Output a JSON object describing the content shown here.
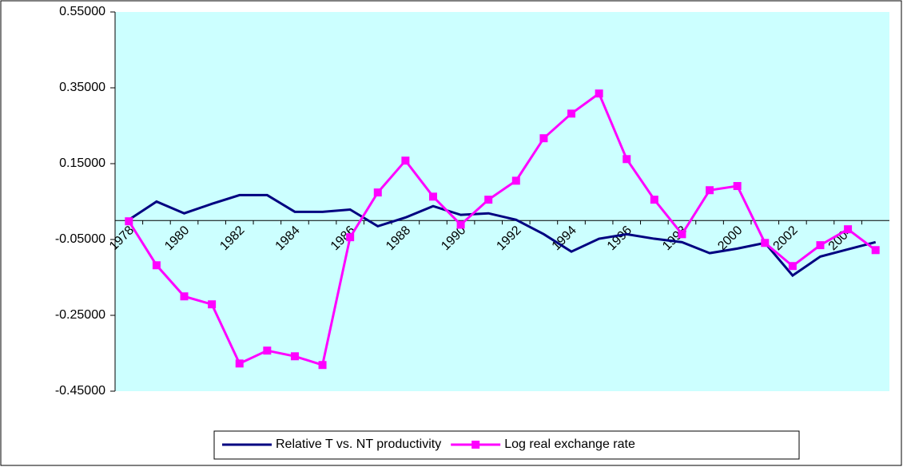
{
  "chart_data": {
    "type": "line",
    "categories": [
      "1978",
      null,
      "1980",
      null,
      "1982",
      null,
      "1984",
      null,
      "1986",
      null,
      "1988",
      null,
      "1990",
      null,
      "1992",
      null,
      "1994",
      null,
      "1996",
      null,
      "1998",
      null,
      "2000",
      null,
      "2002",
      null,
      "2004",
      null
    ],
    "series": [
      {
        "name": "Relative T vs. NT productivity",
        "color": "#000080",
        "marker": "none",
        "values": [
          0.002,
          0.05,
          0.019,
          0.044,
          0.067,
          0.067,
          0.023,
          0.023,
          0.029,
          -0.015,
          0.008,
          0.038,
          0.015,
          0.019,
          0.002,
          -0.036,
          -0.082,
          -0.048,
          -0.036,
          -0.048,
          -0.057,
          -0.086,
          -0.074,
          -0.059,
          -0.145,
          -0.095,
          -0.076,
          -0.057
        ]
      },
      {
        "name": "Log real exchange rate",
        "color": "#ff00ff",
        "marker": "square",
        "values": [
          -0.002,
          -0.118,
          -0.2,
          -0.221,
          -0.377,
          -0.343,
          -0.358,
          -0.381,
          -0.044,
          0.074,
          0.158,
          0.063,
          -0.011,
          0.055,
          0.105,
          0.217,
          0.282,
          0.335,
          0.162,
          0.055,
          -0.036,
          0.08,
          0.091,
          -0.059,
          -0.12,
          -0.065,
          -0.023,
          -0.078
        ]
      }
    ],
    "ylim": [
      -0.45,
      0.55
    ],
    "yticks": [
      {
        "value": -0.45,
        "label": "-0.45000"
      },
      {
        "value": -0.25,
        "label": "-0.25000"
      },
      {
        "value": -0.05,
        "label": "-0.05000"
      },
      {
        "value": 0.15,
        "label": "0.15000"
      },
      {
        "value": 0.35,
        "label": "0.35000"
      },
      {
        "value": 0.55,
        "label": "0.55000"
      }
    ],
    "plot_background": "#ccffff",
    "legend": "bottom"
  }
}
